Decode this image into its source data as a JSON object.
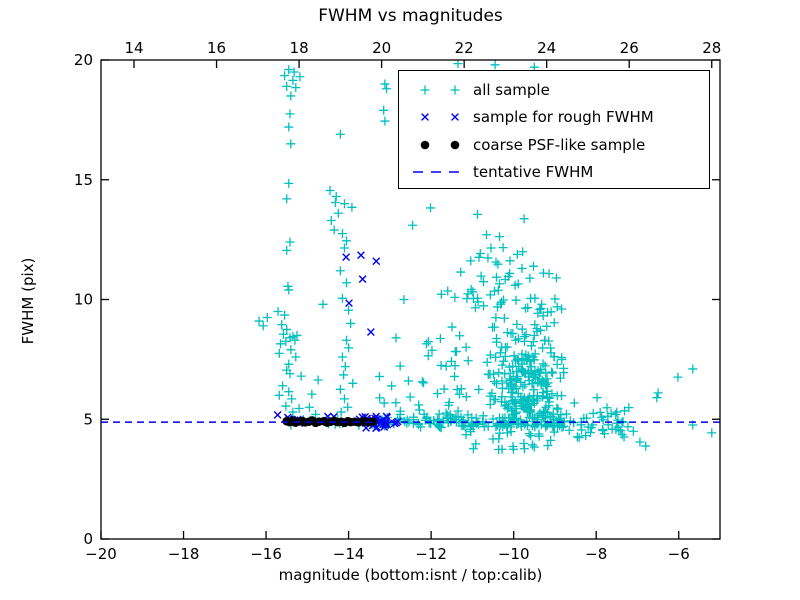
{
  "chart_data": {
    "type": "scatter",
    "title": "FWHM vs magnitudes",
    "axes": {
      "bottom": {
        "label": "magnitude (bottom:isnt / top:calib)",
        "lim": [
          -20,
          -5
        ],
        "ticks": [
          -20,
          -18,
          -16,
          -14,
          -12,
          -10,
          -8,
          -6
        ],
        "labels": [
          "−20",
          "−18",
          "−16",
          "−14",
          "−12",
          "−10",
          "−8",
          "−6"
        ]
      },
      "top": {
        "lim": [
          13.2,
          28.2
        ],
        "ticks": [
          14,
          16,
          18,
          20,
          22,
          24,
          26,
          28
        ],
        "labels": [
          "14",
          "16",
          "18",
          "20",
          "22",
          "24",
          "26",
          "28"
        ]
      },
      "left": {
        "label": "FWHM (pix)",
        "lim": [
          0,
          20
        ],
        "ticks": [
          0,
          5,
          10,
          15,
          20
        ],
        "labels": [
          "0",
          "5",
          "10",
          "15",
          "20"
        ]
      }
    },
    "legend": {
      "items": [
        {
          "label": "all sample",
          "marker": "plus",
          "color": "#00bfbf"
        },
        {
          "label": "sample for rough FWHM",
          "marker": "x",
          "color": "#0000ee"
        },
        {
          "label": "coarse PSF-like sample",
          "marker": "dot",
          "color": "#000000"
        },
        {
          "label": "tentative FWHM",
          "marker": "dash",
          "color": "#0000ee"
        }
      ]
    },
    "tentative_fwhm": 4.88,
    "series": [
      {
        "name": "all sample",
        "marker": "plus",
        "color": "#00bfbf",
        "points": [
          [
            -16.17,
            9.1
          ],
          [
            -16.07,
            8.9
          ],
          [
            -15.97,
            9.25
          ],
          [
            -15.47,
            10.55
          ],
          [
            -15.71,
            9.5
          ],
          [
            -15.55,
            9.35
          ],
          [
            -15.62,
            8.95
          ],
          [
            -15.5,
            8.75
          ],
          [
            -15.58,
            8.55
          ],
          [
            -15.35,
            8.45
          ],
          [
            -15.3,
            8.3
          ],
          [
            -15.42,
            8.4
          ],
          [
            -15.25,
            8.5
          ],
          [
            -15.52,
            8.25
          ],
          [
            -15.65,
            8.15
          ],
          [
            -15.4,
            7.9
          ],
          [
            -15.68,
            7.75
          ],
          [
            -15.45,
            7.3
          ],
          [
            -15.5,
            7.05
          ],
          [
            -15.42,
            6.9
          ],
          [
            -15.6,
            6.4
          ],
          [
            -15.45,
            6.15
          ],
          [
            -15.68,
            6.0
          ],
          [
            -15.38,
            5.85
          ],
          [
            -15.52,
            5.55
          ],
          [
            -15.35,
            5.3
          ],
          [
            -15.2,
            5.45
          ],
          [
            -15.15,
            6.8
          ],
          [
            -15.28,
            7.6
          ],
          [
            -15.45,
            19.6
          ],
          [
            -15.32,
            19.5
          ],
          [
            -15.55,
            19.35
          ],
          [
            -15.18,
            19.3
          ],
          [
            -15.35,
            19.15
          ],
          [
            -15.5,
            18.9
          ],
          [
            -15.28,
            18.85
          ],
          [
            -15.4,
            18.5
          ],
          [
            -15.42,
            17.75
          ],
          [
            -15.45,
            17.2
          ],
          [
            -15.4,
            16.5
          ],
          [
            -15.45,
            14.85
          ],
          [
            -15.5,
            14.2
          ],
          [
            -15.42,
            12.4
          ],
          [
            -15.5,
            12.05
          ],
          [
            -15.45,
            10.4
          ],
          [
            -14.62,
            9.8
          ],
          [
            -14.89,
            6.05
          ],
          [
            -14.74,
            6.64
          ],
          [
            -14.95,
            5.5
          ],
          [
            -14.8,
            5.2
          ],
          [
            -14.45,
            14.55
          ],
          [
            -14.3,
            14.3
          ],
          [
            -14.32,
            14.05
          ],
          [
            -14.1,
            14.0
          ],
          [
            -13.92,
            13.85
          ],
          [
            -14.25,
            13.6
          ],
          [
            -14.42,
            13.3
          ],
          [
            -14.35,
            12.9
          ],
          [
            -14.15,
            12.75
          ],
          [
            -14.05,
            12.45
          ],
          [
            -14.2,
            16.9
          ],
          [
            -14.1,
            12.15
          ],
          [
            -14.2,
            11.2
          ],
          [
            -14.05,
            10.7
          ],
          [
            -14.15,
            10.05
          ],
          [
            -14.0,
            9.55
          ],
          [
            -13.95,
            9.0
          ],
          [
            -14.05,
            8.3
          ],
          [
            -14.0,
            7.98
          ],
          [
            -14.15,
            7.6
          ],
          [
            -14.08,
            7.2
          ],
          [
            -14.12,
            6.85
          ],
          [
            -14.2,
            6.25
          ],
          [
            -14.1,
            5.85
          ],
          [
            -14.02,
            5.5
          ],
          [
            -14.18,
            5.3
          ],
          [
            -13.9,
            6.5
          ],
          [
            -13.12,
            19.0
          ],
          [
            -13.08,
            18.8
          ],
          [
            -13.15,
            17.9
          ],
          [
            -13.12,
            17.45
          ],
          [
            -11.35,
            19.85
          ],
          [
            -10.45,
            19.8
          ],
          [
            -9.5,
            19.7
          ],
          [
            -12.66,
            10.0
          ],
          [
            -12.85,
            8.4
          ],
          [
            -12.55,
            6.6
          ],
          [
            -12.45,
            13.1
          ],
          [
            -12.3,
            5.6
          ],
          [
            -12.75,
            5.2
          ],
          [
            -6.02,
            6.76
          ],
          [
            -5.66,
            7.1
          ],
          [
            -6.5,
            6.1
          ],
          [
            -7.98,
            5.9
          ],
          [
            -6.53,
            5.9
          ],
          [
            -6.94,
            4.05
          ],
          [
            -6.8,
            3.88
          ],
          [
            -5.66,
            4.76
          ],
          [
            -5.2,
            4.43
          ],
          [
            -7.1,
            4.5
          ],
          [
            -7.35,
            4.9
          ],
          [
            -7.5,
            5.3
          ]
        ],
        "clusters": [
          {
            "n": 60,
            "m": [
              -12.5,
              -8.3
            ],
            "f": [
              9.6,
              14.6
            ],
            "mshape": "g",
            "fshape": "low"
          },
          {
            "n": 35,
            "m": [
              -12.3,
              -11.1
            ],
            "f": [
              5.1,
              9.2
            ],
            "mshape": "u",
            "fshape": "low"
          },
          {
            "n": 240,
            "m": [
              -11.1,
              -8.3
            ],
            "f": [
              5.05,
              9.8
            ],
            "mshape": "g",
            "fshape": "low"
          },
          {
            "n": 8,
            "m": [
              -13.4,
              -12.5
            ],
            "f": [
              5.2,
              7.5
            ],
            "mshape": "u",
            "fshape": "u"
          },
          {
            "n": 14,
            "m": [
              -15.55,
              -13.5
            ],
            "f": [
              4.72,
              5.05
            ],
            "mshape": "u",
            "fshape": "u"
          },
          {
            "n": 26,
            "m": [
              -13.5,
              -12.5
            ],
            "f": [
              4.7,
              5.08
            ],
            "mshape": "u",
            "fshape": "u"
          },
          {
            "n": 120,
            "m": [
              -12.5,
              -8.6
            ],
            "f": [
              4.65,
              5.1
            ],
            "mshape": "u",
            "fshape": "u"
          },
          {
            "n": 38,
            "m": [
              -8.6,
              -7.2
            ],
            "f": [
              4.2,
              5.5
            ],
            "mshape": "u",
            "fshape": "u"
          },
          {
            "n": 26,
            "m": [
              -11.2,
              -8.6
            ],
            "f": [
              3.7,
              4.6
            ],
            "mshape": "u",
            "fshape": "u"
          }
        ]
      },
      {
        "name": "sample for rough FWHM",
        "marker": "x",
        "color": "#0000ee",
        "points": [
          [
            -14.06,
            11.77
          ],
          [
            -13.7,
            11.85
          ],
          [
            -13.33,
            11.6
          ],
          [
            -13.66,
            10.85
          ],
          [
            -13.99,
            9.85
          ],
          [
            -13.46,
            8.64
          ],
          [
            -15.72,
            5.18
          ]
        ],
        "clusters": [
          {
            "n": 12,
            "m": [
              -15.5,
              -13.55
            ],
            "f": [
              4.82,
              5.15
            ],
            "mshape": "u",
            "fshape": "u"
          },
          {
            "n": 30,
            "m": [
              -13.6,
              -12.78
            ],
            "f": [
              4.62,
              5.12
            ],
            "mshape": "u",
            "fshape": "u"
          }
        ]
      },
      {
        "name": "coarse PSF-like sample",
        "marker": "dot",
        "color": "#000000",
        "points": [
          [
            -15.5,
            4.92
          ],
          [
            -15.43,
            4.88
          ],
          [
            -15.36,
            4.95
          ],
          [
            -15.29,
            4.86
          ],
          [
            -15.22,
            4.9
          ],
          [
            -15.12,
            4.93
          ],
          [
            -15.05,
            4.87
          ],
          [
            -14.96,
            4.9
          ],
          [
            -14.88,
            4.95
          ],
          [
            -14.8,
            4.85
          ],
          [
            -14.72,
            4.9
          ],
          [
            -14.6,
            4.92
          ],
          [
            -14.52,
            4.86
          ],
          [
            -14.43,
            4.9
          ],
          [
            -14.35,
            4.94
          ],
          [
            -14.27,
            4.88
          ],
          [
            -14.18,
            4.9
          ],
          [
            -14.1,
            4.85
          ],
          [
            -14.02,
            4.92
          ],
          [
            -13.95,
            4.88
          ],
          [
            -13.85,
            4.9
          ],
          [
            -13.76,
            4.87
          ],
          [
            -13.63,
            4.91
          ],
          [
            -13.52,
            4.88
          ],
          [
            -13.42,
            4.9
          ]
        ],
        "clusters": []
      },
      {
        "name": "tentative FWHM",
        "marker": "dash",
        "color": "#0000ee",
        "line_y": 4.88
      }
    ],
    "colors": {
      "all_sample": "#00bfbf",
      "rough_fwhm": "#0000ee",
      "psf_like": "#000000",
      "tentative_line": "#0000ee",
      "frame": "#000000",
      "background": "#ffffff"
    }
  }
}
